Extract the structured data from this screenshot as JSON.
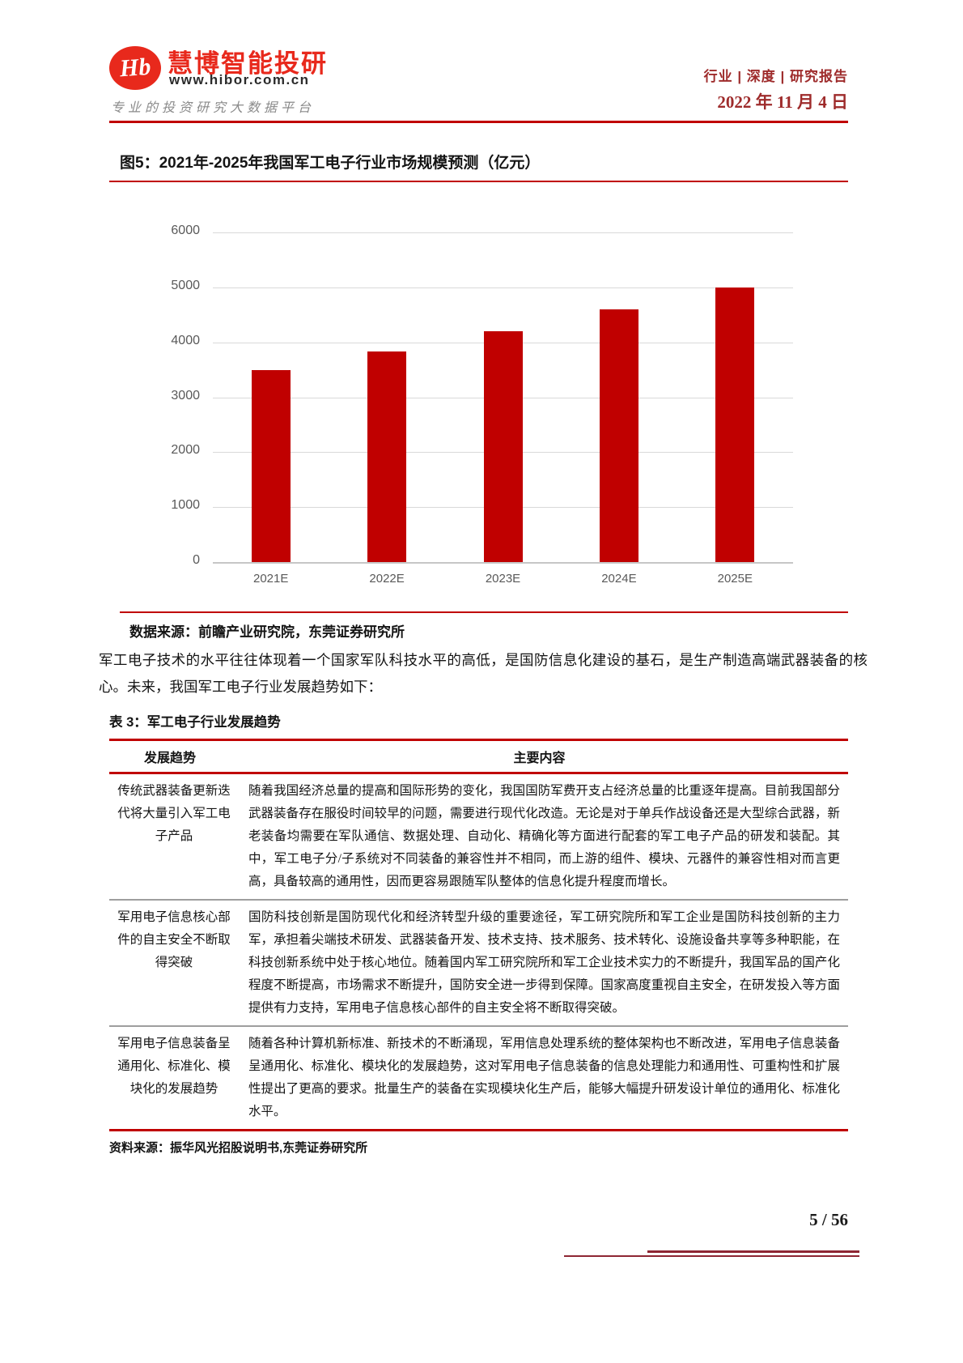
{
  "header": {
    "logo": {
      "monogram": "Hb",
      "brand": "慧博智能投研",
      "website": "www.hibor.com.cn",
      "slogan": "专业的投资研究大数据平台"
    },
    "report_type": "行业 | 深度 | 研究报告",
    "date": "2022 年 11 月 4 日"
  },
  "chart_data": {
    "type": "bar",
    "title": "图5：2021年-2025年我国军工电子行业市场规模预测（亿元）",
    "categories": [
      "2021E",
      "2022E",
      "2023E",
      "2024E",
      "2025E"
    ],
    "values": [
      3500,
      3830,
      4200,
      4600,
      5000
    ],
    "xlabel": "",
    "ylabel": "",
    "ylim": [
      0,
      6000
    ],
    "ytick_interval": 1000,
    "grid": true,
    "legend": false,
    "bar_color": "#c00000"
  },
  "figure": {
    "source": "数据来源：前瞻产业研究院，东莞证券研究所"
  },
  "paragraph": "军工电子技术的水平往往体现着一个国家军队科技水平的高低，是国防信息化建设的基石，是生产制造高端武器装备的核心。未来，我国军工电子行业发展趋势如下：",
  "table": {
    "title": "表 3：军工电子行业发展趋势",
    "columns": [
      "发展趋势",
      "主要内容"
    ],
    "rows": [
      {
        "trend": "传统武器装备更新迭代将大量引入军工电子产品",
        "content": "随着我国经济总量的提高和国际形势的变化，我国国防军费开支占经济总量的比重逐年提高。目前我国部分武器装备存在服役时间较早的问题，需要进行现代化改造。无论是对于单兵作战设备还是大型综合武器，新老装备均需要在军队通信、数据处理、自动化、精确化等方面进行配套的军工电子产品的研发和装配。其中，军工电子分/子系统对不同装备的兼容性并不相同，而上游的组件、模块、元器件的兼容性相对而言更高，具备较高的通用性，因而更容易跟随军队整体的信息化提升程度而增长。"
      },
      {
        "trend": "军用电子信息核心部件的自主安全不断取得突破",
        "content": "国防科技创新是国防现代化和经济转型升级的重要途径，军工研究院所和军工企业是国防科技创新的主力军，承担着尖端技术研发、武器装备开发、技术支持、技术服务、技术转化、设施设备共享等多种职能，在科技创新系统中处于核心地位。随着国内军工研究院所和军工企业技术实力的不断提升，我国军品的国产化程度不断提高，市场需求不断提升，国防安全进一步得到保障。国家高度重视自主安全，在研发投入等方面提供有力支持，军用电子信息核心部件的自主安全将不断取得突破。"
      },
      {
        "trend": "军用电子信息装备呈通用化、标准化、模块化的发展趋势",
        "content": "随着各种计算机新标准、新技术的不断涌现，军用信息处理系统的整体架构也不断改进，军用电子信息装备呈通用化、标准化、模块化的发展趋势，这对军用电子信息装备的信息处理能力和通用性、可重构性和扩展性提出了更高的要求。批量生产的装备在实现模块化生产后，能够大幅提升研发设计单位的通用化、标准化水平。"
      }
    ],
    "source": "资料来源：振华风光招股说明书,东莞证券研究所"
  },
  "footer": {
    "page_number": "5 / 56"
  },
  "colors": {
    "accent_red": "#c00000",
    "header_text_red": "#9e2b2b",
    "logo_red": "#e8291c",
    "footer_line_red": "#8e2633",
    "bar_red": "#c00000",
    "axis_label_gray": "#595959",
    "gridline_gray": "#d9d9d9"
  }
}
